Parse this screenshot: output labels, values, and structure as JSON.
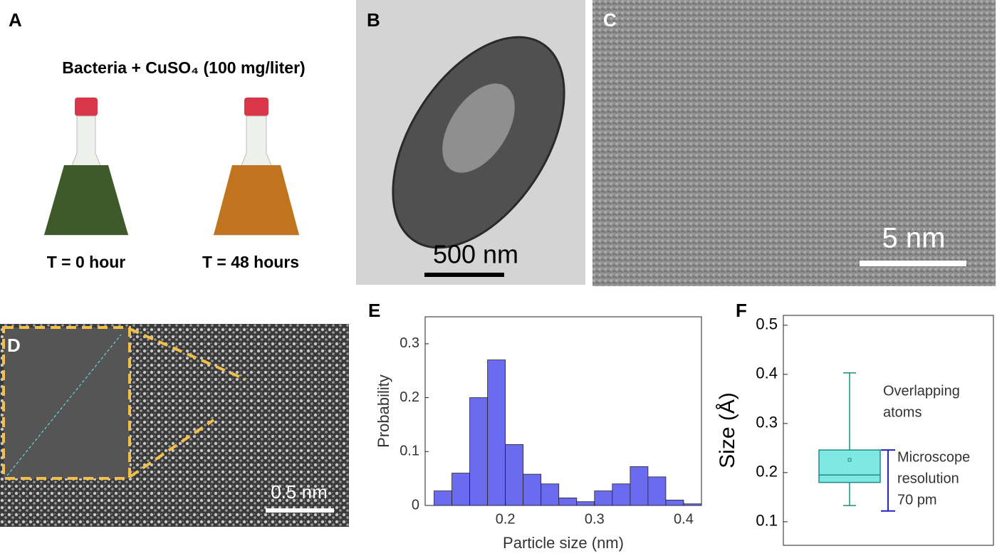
{
  "panels": {
    "A": {
      "label": "A",
      "title": "Bacteria + CuSO₄ (100 mg/liter)",
      "captions": [
        "T = 0 hour",
        "T = 48 hours"
      ]
    },
    "B": {
      "label": "B",
      "scale_bar": "500 nm"
    },
    "C": {
      "label": "C",
      "scale_bar": "5 nm"
    },
    "D": {
      "label": "D",
      "scale_bar": "0.5 nm"
    }
  },
  "chart_data": [
    {
      "type": "histogram",
      "label": "E",
      "x_label": "Particle size (nm)",
      "y_label": "Probability",
      "bins": [
        0.12,
        0.14,
        0.16,
        0.18,
        0.2,
        0.22,
        0.24,
        0.26,
        0.28,
        0.3,
        0.32,
        0.34,
        0.36,
        0.38,
        0.4,
        0.42
      ],
      "values": [
        0.027,
        0.06,
        0.2,
        0.27,
        0.113,
        0.058,
        0.04,
        0.014,
        0.007,
        0.027,
        0.04,
        0.072,
        0.053,
        0.01,
        0.003
      ],
      "color": "#6b6bf0",
      "xlim": [
        0.11,
        0.42
      ],
      "ylim": [
        0,
        0.35
      ],
      "xticks": [
        0.2,
        0.3,
        0.4
      ],
      "yticks": [
        0,
        0.1,
        0.2,
        0.3
      ]
    },
    {
      "type": "box",
      "label": "F",
      "y_label": "Size (Å)",
      "box": {
        "whisker_low": 0.133,
        "q1": 0.18,
        "median": 0.195,
        "q3": 0.246,
        "whisker_high": 0.403,
        "mean": 0.226
      },
      "color": "#7fe8e2",
      "line_color": "#1f8a86",
      "resolution_bar": [
        0.122,
        0.246
      ],
      "resolution_color": "#2323c8",
      "annotations": [
        [
          "Overlapping",
          "atoms"
        ],
        [
          "Microscope",
          "resolution",
          "70 pm"
        ]
      ],
      "ylim": [
        0.052,
        0.52
      ],
      "yticks": [
        0.1,
        0.2,
        0.3,
        0.4,
        0.5
      ]
    }
  ]
}
